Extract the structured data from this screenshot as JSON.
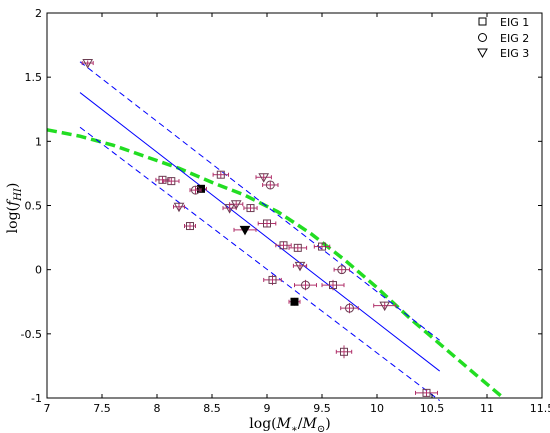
{
  "chart_data": {
    "type": "scatter",
    "xlabel": "log(M*/M⊙)",
    "ylabel": "log(fHI)",
    "xlim": [
      7,
      11.5
    ],
    "ylim": [
      -1,
      2
    ],
    "xticks": [
      "7",
      "7.5",
      "8",
      "8.5",
      "9",
      "9.5",
      "10",
      "10.5",
      "11",
      "11.5"
    ],
    "yticks": [
      "-1",
      "-0.5",
      "0",
      "0.5",
      "1",
      "1.5",
      "2"
    ],
    "xtick_values": [
      7,
      7.5,
      8,
      8.5,
      9,
      9.5,
      10,
      10.5,
      11,
      11.5
    ],
    "ytick_values": [
      -1,
      -0.5,
      0,
      0.5,
      1,
      1.5,
      2
    ],
    "grid": false,
    "legend_position": "top-right",
    "legend": [
      {
        "label": "EIG 1",
        "marker": "square"
      },
      {
        "label": "EIG 2",
        "marker": "circle"
      },
      {
        "label": "EIG 3",
        "marker": "triangle-down"
      }
    ],
    "colors": {
      "marker_edge": "#6b3d52",
      "errorbar": "#b0306a",
      "fit_line": "#0000ff",
      "model_curve": "#22dd22",
      "filled": "#000000"
    },
    "fit_line": {
      "x": [
        7.3,
        10.57
      ],
      "y": [
        1.38,
        -0.79
      ]
    },
    "fit_upper": {
      "x": [
        7.3,
        10.57
      ],
      "y": [
        1.62,
        -0.55
      ]
    },
    "fit_lower": {
      "x": [
        7.3,
        10.57
      ],
      "y": [
        1.11,
        -1.02
      ]
    },
    "model_curve": {
      "x": [
        7.0,
        7.3,
        7.6,
        7.9,
        8.2,
        8.5,
        8.8,
        9.1,
        9.4,
        9.7,
        10.0,
        10.3,
        10.6,
        10.9,
        11.15
      ],
      "y": [
        1.09,
        1.04,
        0.97,
        0.88,
        0.79,
        0.68,
        0.58,
        0.45,
        0.28,
        0.08,
        -0.14,
        -0.38,
        -0.6,
        -0.82,
        -1.0
      ]
    },
    "series": [
      {
        "name": "EIG 1",
        "marker": "square",
        "points": [
          {
            "x": 8.05,
            "y": 0.7,
            "xerr": 0.06,
            "yerr": 0.03
          },
          {
            "x": 8.13,
            "y": 0.69,
            "xerr": 0.07,
            "yerr": 0.03
          },
          {
            "x": 8.3,
            "y": 0.34,
            "xerr": 0.05,
            "yerr": 0.03
          },
          {
            "x": 8.58,
            "y": 0.74,
            "xerr": 0.07,
            "yerr": 0.03
          },
          {
            "x": 8.85,
            "y": 0.48,
            "xerr": 0.06,
            "yerr": 0.03
          },
          {
            "x": 9.0,
            "y": 0.36,
            "xerr": 0.08,
            "yerr": 0.03
          },
          {
            "x": 9.05,
            "y": -0.08,
            "xerr": 0.08,
            "yerr": 0.04
          },
          {
            "x": 9.15,
            "y": 0.19,
            "xerr": 0.07,
            "yerr": 0.03
          },
          {
            "x": 9.28,
            "y": 0.17,
            "xerr": 0.08,
            "yerr": 0.03
          },
          {
            "x": 9.5,
            "y": 0.18,
            "xerr": 0.07,
            "yerr": 0.03
          },
          {
            "x": 9.6,
            "y": -0.12,
            "xerr": 0.1,
            "yerr": 0.04
          },
          {
            "x": 9.7,
            "y": -0.64,
            "xerr": 0.07,
            "yerr": 0.05
          },
          {
            "x": 10.45,
            "y": -0.96,
            "xerr": 0.1,
            "yerr": 0.03
          },
          {
            "x": 9.25,
            "y": -0.25,
            "xerr": 0.05,
            "yerr": 0.03,
            "filled": true
          },
          {
            "x": 8.4,
            "y": 0.63,
            "xerr": 0.05,
            "yerr": 0.03,
            "filled": true
          }
        ]
      },
      {
        "name": "EIG 2",
        "marker": "circle",
        "points": [
          {
            "x": 8.35,
            "y": 0.62,
            "xerr": 0.05,
            "yerr": 0.03
          },
          {
            "x": 9.03,
            "y": 0.66,
            "xerr": 0.07,
            "yerr": 0.03
          },
          {
            "x": 9.35,
            "y": -0.12,
            "xerr": 0.1,
            "yerr": 0.04
          },
          {
            "x": 9.68,
            "y": 0.0,
            "xerr": 0.07,
            "yerr": 0.03
          },
          {
            "x": 9.75,
            "y": -0.3,
            "xerr": 0.08,
            "yerr": 0.04
          }
        ]
      },
      {
        "name": "EIG 3",
        "marker": "triangle-down",
        "points": [
          {
            "x": 7.37,
            "y": 1.61,
            "xerr": 0.05,
            "yerr": 0.02
          },
          {
            "x": 8.2,
            "y": 0.49,
            "xerr": 0.05,
            "yerr": 0.03
          },
          {
            "x": 8.66,
            "y": 0.48,
            "xerr": 0.06,
            "yerr": 0.03
          },
          {
            "x": 8.72,
            "y": 0.51,
            "xerr": 0.06,
            "yerr": 0.03
          },
          {
            "x": 8.97,
            "y": 0.72,
            "xerr": 0.07,
            "yerr": 0.03
          },
          {
            "x": 9.3,
            "y": 0.03,
            "xerr": 0.06,
            "yerr": 0.03
          },
          {
            "x": 10.07,
            "y": -0.28,
            "xerr": 0.1,
            "yerr": 0.03
          },
          {
            "x": 8.8,
            "y": 0.31,
            "xerr": 0.1,
            "yerr": 0.03,
            "filled": true
          }
        ]
      }
    ]
  }
}
